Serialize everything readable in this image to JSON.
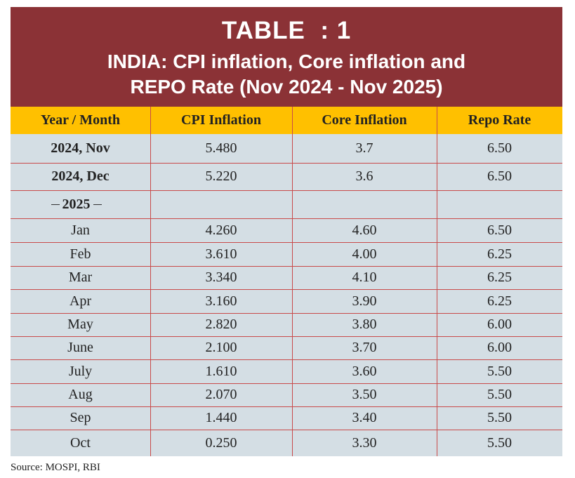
{
  "header": {
    "title": "TABLE  : 1",
    "subtitle_lines": [
      "INDIA: CPI inflation, Core inflation and",
      "REPO Rate (Nov 2024 - Nov 2025)"
    ]
  },
  "table": {
    "columns": [
      "Year / Month",
      "CPI Inflation",
      "Core Inflation",
      "Repo Rate"
    ],
    "groups": [
      {
        "rows": [
          [
            "2024, Nov",
            "5.480",
            "3.7",
            "6.50"
          ],
          [
            "2024, Dec",
            "5.220",
            "3.6",
            "6.50"
          ]
        ]
      },
      {
        "label": "2025",
        "rows": [
          [
            "Jan",
            "4.260",
            "4.60",
            "6.50"
          ],
          [
            "Feb",
            "3.610",
            "4.00",
            "6.25"
          ],
          [
            "Mar",
            "3.340",
            "4.10",
            "6.25"
          ],
          [
            "Apr",
            "3.160",
            "3.90",
            "6.25"
          ],
          [
            "May",
            "2.820",
            "3.80",
            "6.00"
          ],
          [
            "June",
            "2.100",
            "3.70",
            "6.00"
          ],
          [
            "July",
            "1.610",
            "3.60",
            "5.50"
          ],
          [
            "Aug",
            "2.070",
            "3.50",
            "5.50"
          ],
          [
            "Sep",
            "1.440",
            "3.40",
            "5.50"
          ],
          [
            "Oct",
            "0.250",
            "3.30",
            "5.50"
          ]
        ]
      }
    ]
  },
  "footer": {
    "source": "Source: MOSPI, RBI"
  }
}
